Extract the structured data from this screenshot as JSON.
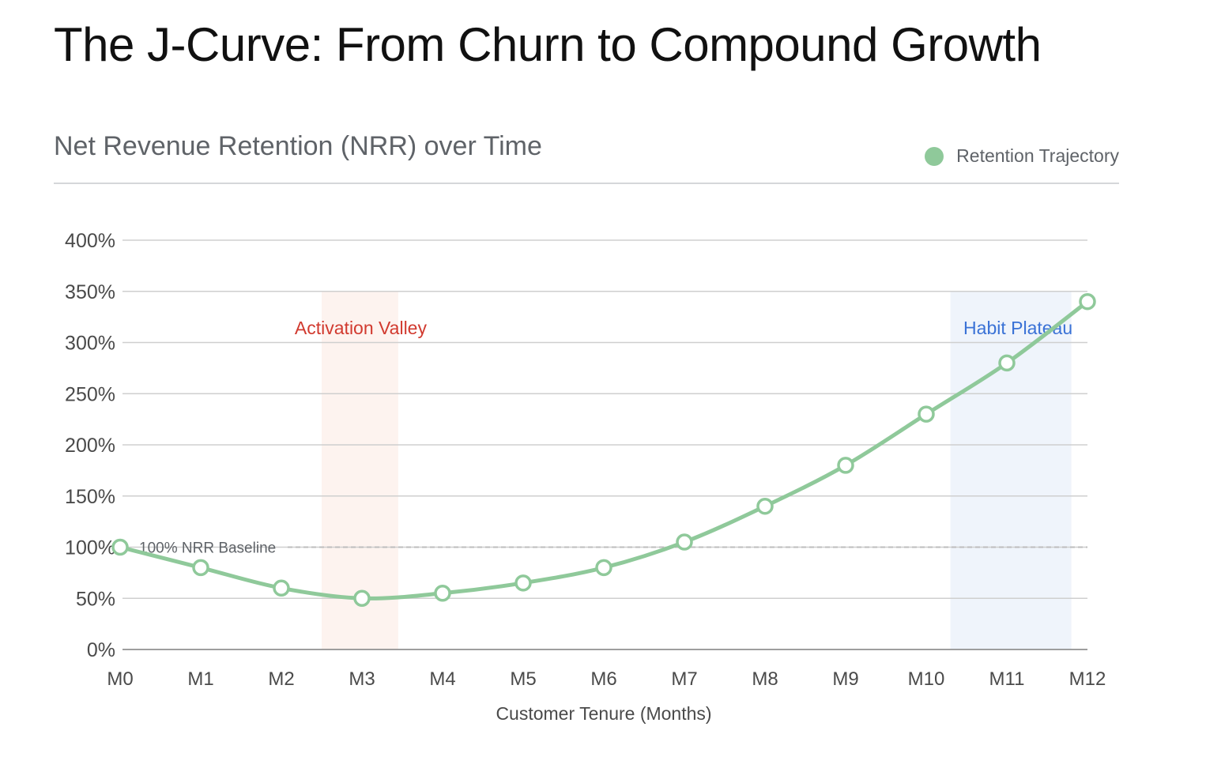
{
  "page_title": "The J-Curve: From Churn to Compound Growth",
  "chart_data": {
    "type": "line",
    "subtitle": "Net Revenue Retention (NRR) over Time",
    "xlabel": "Customer Tenure (Months)",
    "ylabel": "",
    "categories": [
      "M0",
      "M1",
      "M2",
      "M3",
      "M4",
      "M5",
      "M6",
      "M7",
      "M8",
      "M9",
      "M10",
      "M11",
      "M12"
    ],
    "series": [
      {
        "name": "Retention Trajectory",
        "values": [
          100,
          80,
          60,
          50,
          55,
          65,
          80,
          105,
          140,
          180,
          230,
          280,
          340
        ],
        "color": "#8fc99a"
      }
    ],
    "ylim": [
      0,
      400
    ],
    "ytick_values": [
      0,
      50,
      100,
      150,
      200,
      250,
      300,
      350,
      400
    ],
    "ytick_labels": [
      "0%",
      "50%",
      "100%",
      "150%",
      "200%",
      "250%",
      "300%",
      "350%",
      "400%"
    ],
    "grid": true,
    "legend_position": "top-right",
    "baseline": {
      "value": 100,
      "label": "100% NRR Baseline",
      "color": "#bdbdbd"
    },
    "bands": [
      {
        "label": "Activation Valley",
        "x_start": 2.5,
        "x_end": 3.45,
        "y_top": 350,
        "fill": "#fdf3ef",
        "label_color": "#d13a2f"
      },
      {
        "label": "Habit Plateau",
        "x_start": 10.3,
        "x_end": 11.8,
        "y_top": 350,
        "fill": "#eff4fb",
        "label_color": "#3a72d6"
      }
    ]
  }
}
